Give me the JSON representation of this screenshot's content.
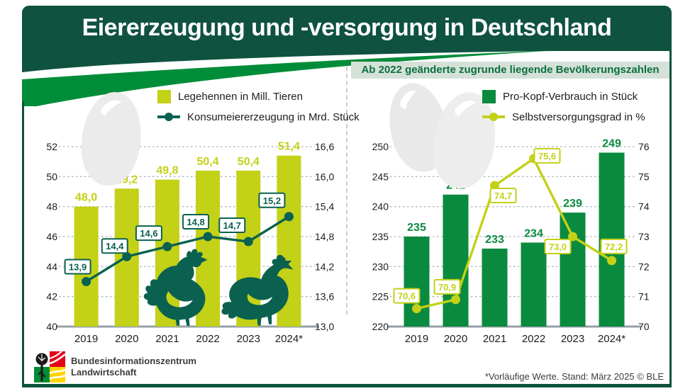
{
  "title": "Eiererzeugung und -versorgung in Deutschland",
  "footer": {
    "logo_line1": "Bundesinformationszentrum",
    "logo_line2": "Landwirtschaft",
    "note": "*Vorläufige Werte. Stand: März 2025 © BLE"
  },
  "colors": {
    "header_green": "#0f5240",
    "swoosh_green": "#008c38",
    "chartreuse": "#c3d117",
    "dark_line_green": "#0b6150",
    "bar_green": "#0a8a3e",
    "banner_bg": "#d5e1d8",
    "banner_text": "#0b7040",
    "grid_gray": "#aab4bc",
    "baseline_gray": "#95a0a7"
  },
  "icons": {
    "left_decor": [
      "egg-icon",
      "rooster-icon",
      "hen-icon"
    ],
    "right_decor": [
      "egg-icon",
      "egg-icon"
    ],
    "footer": "bzl-logo"
  },
  "chart_data": [
    {
      "type": "combo-bar-line",
      "title": "",
      "categories": [
        "2019",
        "2020",
        "2021",
        "2022",
        "2023",
        "2024*"
      ],
      "series": [
        {
          "name": "Legehennen in Mill. Tieren",
          "chart": "bar",
          "axis": "left",
          "values": [
            48.0,
            49.2,
            49.8,
            50.4,
            50.4,
            51.4
          ],
          "labels": [
            "48,0",
            "49,2",
            "49,8",
            "50,4",
            "50,4",
            "51,4"
          ],
          "color": "#c3d117"
        },
        {
          "name": "Konsumeiererzeugung in Mrd. Stück",
          "chart": "line",
          "axis": "right",
          "values": [
            13.9,
            14.4,
            14.6,
            14.8,
            14.7,
            15.2
          ],
          "labels": [
            "13,9",
            "14,4",
            "14,6",
            "14,8",
            "14,7",
            "15,2"
          ],
          "color": "#0b6150"
        }
      ],
      "axes": {
        "left": {
          "min": 40,
          "max": 52,
          "ticks": [
            "40",
            "42",
            "44",
            "46",
            "48",
            "50",
            "52"
          ]
        },
        "right": {
          "min": 13.0,
          "max": 16.6,
          "ticks": [
            "13,0",
            "13,6",
            "14,2",
            "14,8",
            "15,4",
            "16,0",
            "16,6"
          ]
        }
      },
      "grid": true,
      "legend_position": "top"
    },
    {
      "type": "combo-bar-line",
      "title": "Ab 2022 geänderte zugrunde liegende Bevölkerungszahlen",
      "categories": [
        "2019",
        "2020",
        "2021",
        "2022",
        "2023",
        "2024*"
      ],
      "series": [
        {
          "name": "Pro-Kopf-Verbrauch in Stück",
          "chart": "bar",
          "axis": "left",
          "values": [
            235,
            242,
            233,
            234,
            239,
            249
          ],
          "labels": [
            "235",
            "242",
            "233",
            "234",
            "239",
            "249"
          ],
          "color": "#0a8a3e"
        },
        {
          "name": "Selbstversorgungsgrad in %",
          "chart": "line",
          "axis": "right",
          "values": [
            70.6,
            70.9,
            74.7,
            75.6,
            73.0,
            72.2
          ],
          "labels": [
            "70,6",
            "70,9",
            "74,7",
            "75,6",
            "73,0",
            "72,2"
          ],
          "color": "#c3d117"
        }
      ],
      "axes": {
        "left": {
          "min": 220,
          "max": 250,
          "ticks": [
            "220",
            "225",
            "230",
            "235",
            "240",
            "245",
            "250"
          ]
        },
        "right": {
          "min": 70,
          "max": 76,
          "ticks": [
            "70",
            "71",
            "72",
            "73",
            "74",
            "75",
            "76"
          ]
        }
      },
      "grid": true,
      "legend_position": "top"
    }
  ]
}
